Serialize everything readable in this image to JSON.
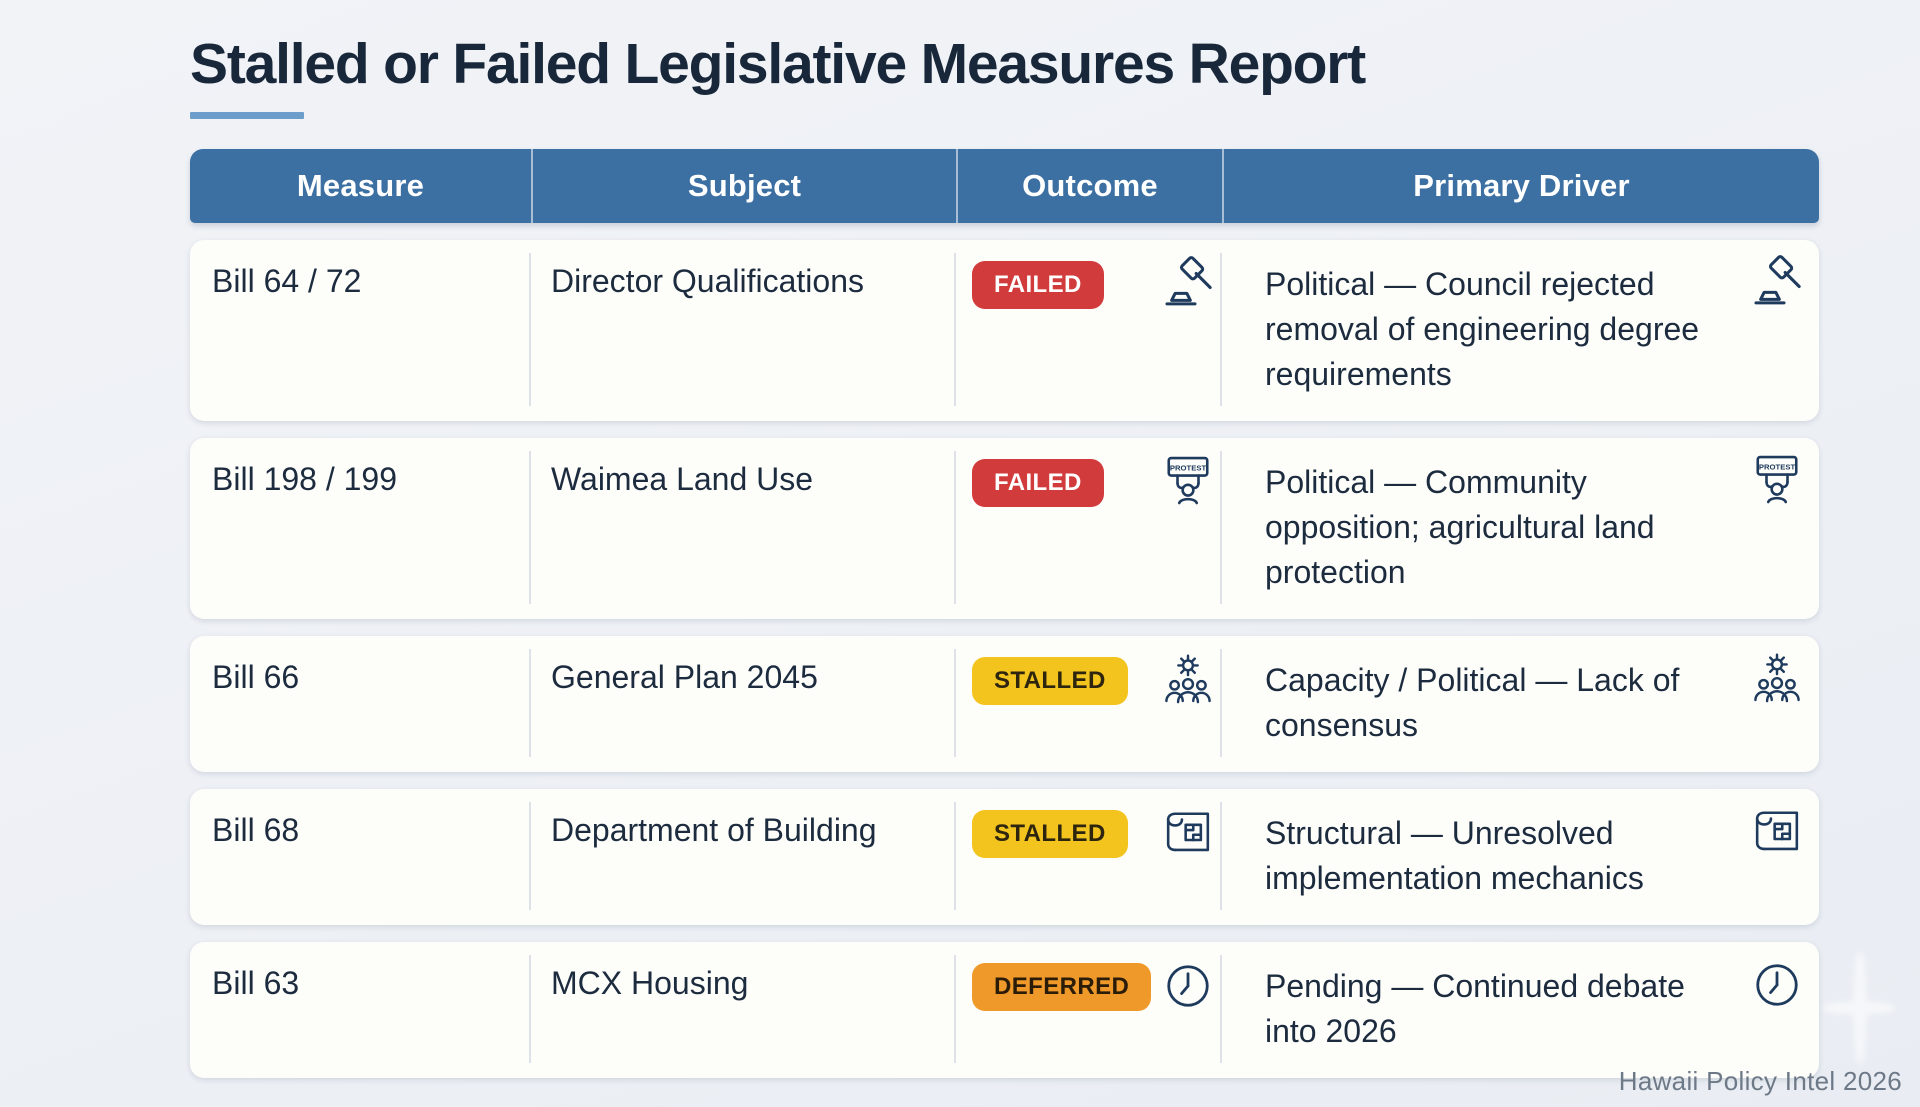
{
  "page": {
    "title": "Stalled or Failed Legislative Measures Report",
    "footer": "Hawaii Policy Intel 2026"
  },
  "colors": {
    "header_bg": "#3c70a2",
    "underline": "#6d9ecb",
    "failed": "#d23b3b",
    "stalled": "#f3c41e",
    "deferred": "#f0992b",
    "icon_stroke": "#1e3a5c",
    "card_bg": "#fdfdfa",
    "page_bg": "#edf0f5",
    "text": "#1c2b3e"
  },
  "icons": {
    "protest_sign_label": "PROTEST"
  },
  "table": {
    "columns": [
      "Measure",
      "Subject",
      "Outcome",
      "Primary Driver"
    ],
    "rows": [
      {
        "measure": "Bill 64 / 72",
        "subject": "Director Qualifications",
        "outcome": "FAILED",
        "outcome_type": "failed",
        "icon": "gavel-icon",
        "driver": "Political — Council rejected removal of engineering degree requirements"
      },
      {
        "measure": "Bill 198 / 199",
        "subject": "Waimea Land Use",
        "outcome": "FAILED",
        "outcome_type": "failed",
        "icon": "protest-icon",
        "driver": "Political — Community opposition; agricultural land protection"
      },
      {
        "measure": "Bill 66",
        "subject": "General Plan 2045",
        "outcome": "STALLED",
        "outcome_type": "stalled",
        "icon": "consensus-icon",
        "driver": "Capacity / Political — Lack of consensus"
      },
      {
        "measure": "Bill 68",
        "subject": "Department of Building",
        "outcome": "STALLED",
        "outcome_type": "stalled",
        "icon": "blueprint-icon",
        "driver": "Structural — Unresolved implementation mechanics"
      },
      {
        "measure": "Bill 63",
        "subject": "MCX Housing",
        "outcome": "DEFERRED",
        "outcome_type": "deferred",
        "icon": "clock-icon",
        "driver": "Pending — Continued debate into 2026"
      }
    ]
  }
}
